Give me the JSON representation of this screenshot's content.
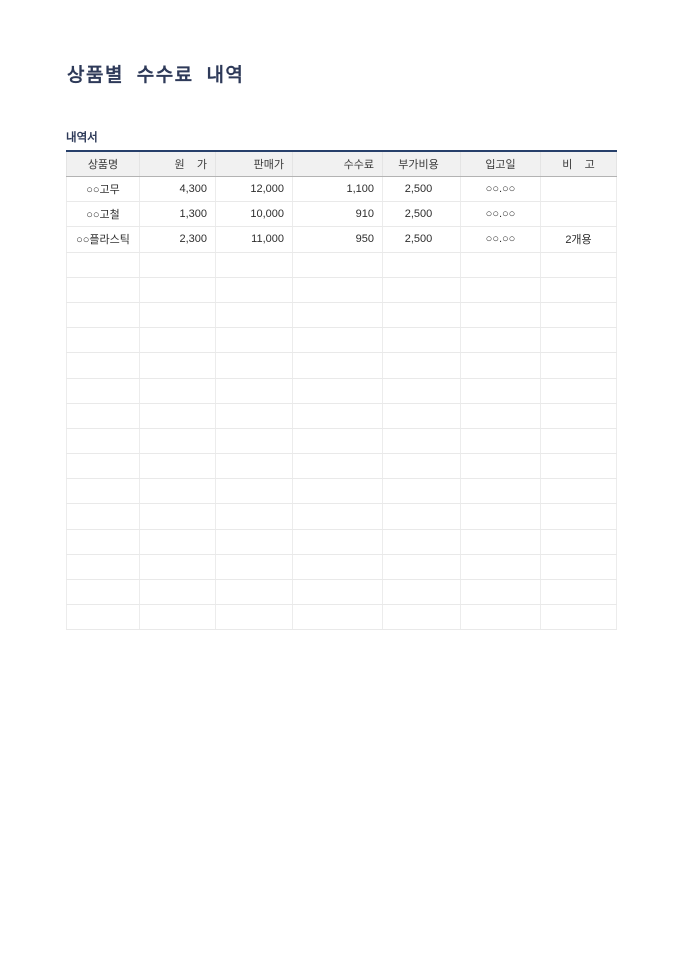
{
  "title": "상품별 수수료 내역",
  "subtitle": "내역서",
  "colors": {
    "accent_navy": "#2e3a59",
    "table_top_border": "#27406b",
    "header_background": "#f1f1f1",
    "gridline": "#e9e9e9",
    "table_bottom_border": "#9a9a9a"
  },
  "table": {
    "columns": [
      {
        "label": "상품명"
      },
      {
        "label": "원    가"
      },
      {
        "label": "판매가"
      },
      {
        "label": "수수료"
      },
      {
        "label": "부가비용"
      },
      {
        "label": "입고일"
      },
      {
        "label": "비    고"
      }
    ],
    "rows": [
      [
        "○○고무",
        "4,300",
        "12,000",
        "1,100",
        "2,500",
        "○○.○○",
        ""
      ],
      [
        "○○고철",
        "1,300",
        "10,000",
        "910",
        "2,500",
        "○○.○○",
        ""
      ],
      [
        "○○플라스틱",
        "2,300",
        "11,000",
        "950",
        "2,500",
        "○○.○○",
        "2개용"
      ]
    ],
    "empty_row_count": 15
  }
}
